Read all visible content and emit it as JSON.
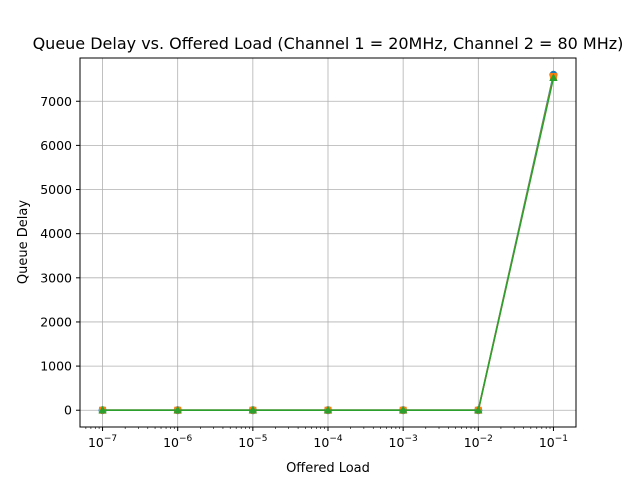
{
  "chart_data": {
    "type": "line",
    "title": "Queue Delay vs. Offered Load (Channel 1 = 20MHz, Channel 2 = 80 MHz)",
    "xlabel": "Offered Load",
    "ylabel": "Queue Delay",
    "xscale": "log",
    "x": [
      1e-07,
      1e-06,
      1e-05,
      0.0001,
      0.001,
      0.01,
      0.1
    ],
    "x_tick_labels": [
      {
        "base": "10",
        "exp": "−7"
      },
      {
        "base": "10",
        "exp": "−6"
      },
      {
        "base": "10",
        "exp": "−5"
      },
      {
        "base": "10",
        "exp": "−4"
      },
      {
        "base": "10",
        "exp": "−3"
      },
      {
        "base": "10",
        "exp": "−2"
      },
      {
        "base": "10",
        "exp": "−1"
      }
    ],
    "y_ticks": [
      0,
      1000,
      2000,
      3000,
      4000,
      5000,
      6000,
      7000
    ],
    "y_tick_labels": [
      "0",
      "1000",
      "2000",
      "3000",
      "4000",
      "5000",
      "6000",
      "7000"
    ],
    "ylim": [
      -380,
      7980
    ],
    "xlim_log10": [
      -7.3,
      -0.7
    ],
    "grid": true,
    "series": [
      {
        "marker": "circle",
        "color": "#1f77b4",
        "values": [
          0,
          0,
          0,
          0,
          0,
          0,
          7600
        ]
      },
      {
        "marker": "square",
        "color": "#ff7f0e",
        "values": [
          0,
          0,
          0,
          0,
          0,
          0,
          7560
        ]
      },
      {
        "marker": "triangle",
        "color": "#2ca02c",
        "values": [
          0,
          0,
          0,
          0,
          0,
          0,
          7530
        ]
      }
    ]
  }
}
